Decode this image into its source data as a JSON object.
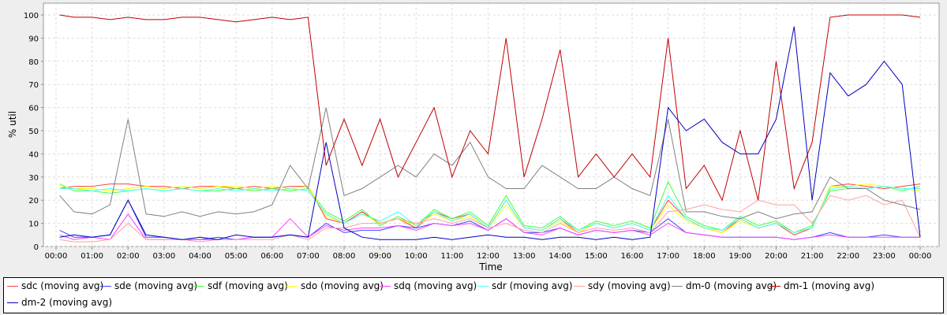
{
  "chart_data": {
    "type": "line",
    "title": "",
    "xlabel": "Time",
    "ylabel": "% util",
    "ylim": [
      0,
      100
    ],
    "xlim_hours": [
      -0.2,
      24.4
    ],
    "grid": true,
    "legend_position": "bottom",
    "y_ticks": [
      "0",
      "10",
      "20",
      "30",
      "40",
      "50",
      "60",
      "70",
      "80",
      "90",
      "100"
    ],
    "x_ticks": [
      "00:00",
      "01:00",
      "02:00",
      "03:00",
      "04:00",
      "05:00",
      "06:00",
      "07:00",
      "08:00",
      "09:00",
      "10:00",
      "11:00",
      "12:00",
      "13:00",
      "14:00",
      "15:00",
      "16:00",
      "17:00",
      "18:00",
      "19:00",
      "20:00",
      "21:00",
      "22:00",
      "23:00",
      "00:00"
    ],
    "x_hours": [
      0.1,
      0.5,
      1,
      1.5,
      2,
      2.5,
      3,
      3.5,
      4,
      4.5,
      5,
      5.5,
      6,
      6.5,
      7,
      7.5,
      8,
      8.5,
      9,
      9.5,
      10,
      10.5,
      11,
      11.5,
      12,
      12.5,
      13,
      13.5,
      14,
      14.5,
      15,
      15.5,
      16,
      16.5,
      17,
      17.5,
      18,
      18.5,
      19,
      19.5,
      20,
      20.5,
      21,
      21.5,
      22,
      22.5,
      23,
      23.5,
      24
    ],
    "series": [
      {
        "name": "sdc (moving avg)",
        "color": "#ff4040",
        "values": [
          25,
          26,
          26,
          27,
          27,
          26,
          26,
          25,
          26,
          26,
          25,
          26,
          25,
          26,
          26,
          12,
          10,
          15,
          10,
          12,
          8,
          15,
          12,
          14,
          8,
          20,
          8,
          7,
          12,
          6,
          10,
          8,
          10,
          7,
          20,
          12,
          8,
          6,
          12,
          8,
          10,
          5,
          8,
          26,
          27,
          26,
          25,
          26,
          27
        ]
      },
      {
        "name": "sde (moving avg)",
        "color": "#4040ff",
        "values": [
          7,
          4,
          4,
          5,
          20,
          4,
          4,
          3,
          3,
          4,
          3,
          4,
          4,
          5,
          4,
          10,
          6,
          7,
          7,
          9,
          8,
          10,
          9,
          11,
          7,
          12,
          6,
          6,
          8,
          5,
          7,
          6,
          7,
          6,
          12,
          6,
          5,
          4,
          4,
          4,
          4,
          3,
          4,
          6,
          4,
          4,
          5,
          4,
          4
        ]
      },
      {
        "name": "sdf (moving avg)",
        "color": "#40ff40",
        "values": [
          27,
          24,
          24,
          23,
          24,
          25,
          24,
          25,
          24,
          24,
          25,
          24,
          25,
          24,
          25,
          15,
          11,
          16,
          9,
          13,
          9,
          16,
          12,
          15,
          9,
          22,
          9,
          8,
          13,
          7,
          11,
          9,
          11,
          8,
          28,
          13,
          9,
          7,
          13,
          9,
          11,
          6,
          9,
          24,
          25,
          25,
          26,
          24,
          26
        ]
      },
      {
        "name": "sdo (moving avg)",
        "color": "#ffff00",
        "values": [
          26,
          25,
          25,
          24,
          25,
          26,
          25,
          26,
          25,
          26,
          26,
          25,
          26,
          25,
          26,
          13,
          10,
          14,
          10,
          12,
          9,
          14,
          11,
          13,
          8,
          18,
          8,
          7,
          11,
          6,
          10,
          8,
          10,
          7,
          18,
          11,
          8,
          6,
          11,
          8,
          10,
          6,
          8,
          26,
          26,
          27,
          26,
          25,
          24
        ]
      },
      {
        "name": "sdq (moving avg)",
        "color": "#ff40ff",
        "values": [
          5,
          3,
          4,
          3,
          14,
          3,
          3,
          3,
          3,
          3,
          3,
          4,
          4,
          12,
          4,
          9,
          7,
          8,
          8,
          9,
          7,
          10,
          9,
          10,
          7,
          12,
          6,
          5,
          8,
          5,
          7,
          6,
          7,
          5,
          10,
          6,
          5,
          4,
          4,
          4,
          4,
          3,
          4,
          5,
          4,
          4,
          4,
          4,
          4
        ]
      },
      {
        "name": "sdr (moving avg)",
        "color": "#40ffff",
        "values": [
          25,
          25,
          24,
          25,
          24,
          25,
          24,
          25,
          24,
          25,
          24,
          25,
          24,
          25,
          24,
          14,
          10,
          14,
          11,
          15,
          9,
          15,
          11,
          14,
          8,
          20,
          8,
          7,
          12,
          7,
          10,
          8,
          10,
          7,
          22,
          12,
          8,
          7,
          12,
          8,
          10,
          6,
          8,
          25,
          26,
          25,
          26,
          25,
          25
        ]
      },
      {
        "name": "sdy (moving avg)",
        "color": "#ffa0a0",
        "values": [
          3,
          2,
          2,
          3,
          10,
          3,
          3,
          3,
          2,
          3,
          3,
          3,
          3,
          5,
          3,
          8,
          8,
          10,
          10,
          12,
          10,
          12,
          10,
          12,
          8,
          10,
          7,
          6,
          10,
          6,
          8,
          7,
          8,
          6,
          15,
          16,
          18,
          16,
          15,
          20,
          18,
          18,
          10,
          22,
          20,
          22,
          18,
          20,
          4
        ]
      },
      {
        "name": "dm-0 (moving avg)",
        "color": "#808080",
        "values": [
          22,
          15,
          14,
          18,
          55,
          14,
          13,
          15,
          13,
          15,
          14,
          15,
          18,
          35,
          25,
          60,
          22,
          25,
          30,
          35,
          30,
          40,
          35,
          45,
          30,
          25,
          25,
          35,
          30,
          25,
          25,
          30,
          25,
          22,
          55,
          15,
          15,
          13,
          12,
          15,
          12,
          14,
          15,
          30,
          25,
          25,
          20,
          18,
          16
        ]
      },
      {
        "name": "dm-1 (moving avg)",
        "color": "#c00000",
        "values": [
          100,
          99,
          99,
          98,
          99,
          98,
          98,
          99,
          99,
          98,
          97,
          98,
          99,
          98,
          99,
          35,
          55,
          35,
          55,
          30,
          45,
          60,
          30,
          50,
          40,
          90,
          30,
          55,
          85,
          30,
          40,
          30,
          40,
          30,
          90,
          25,
          35,
          20,
          50,
          20,
          80,
          25,
          45,
          99,
          100,
          100,
          100,
          100,
          99
        ]
      },
      {
        "name": "dm-2 (moving avg)",
        "color": "#0000c0",
        "values": [
          4,
          5,
          4,
          5,
          20,
          5,
          4,
          3,
          4,
          3,
          5,
          4,
          4,
          5,
          4,
          45,
          8,
          4,
          3,
          3,
          3,
          4,
          3,
          4,
          5,
          4,
          4,
          3,
          4,
          4,
          3,
          4,
          3,
          4,
          60,
          50,
          55,
          45,
          40,
          40,
          55,
          95,
          20,
          75,
          65,
          70,
          80,
          70,
          4
        ]
      }
    ]
  }
}
